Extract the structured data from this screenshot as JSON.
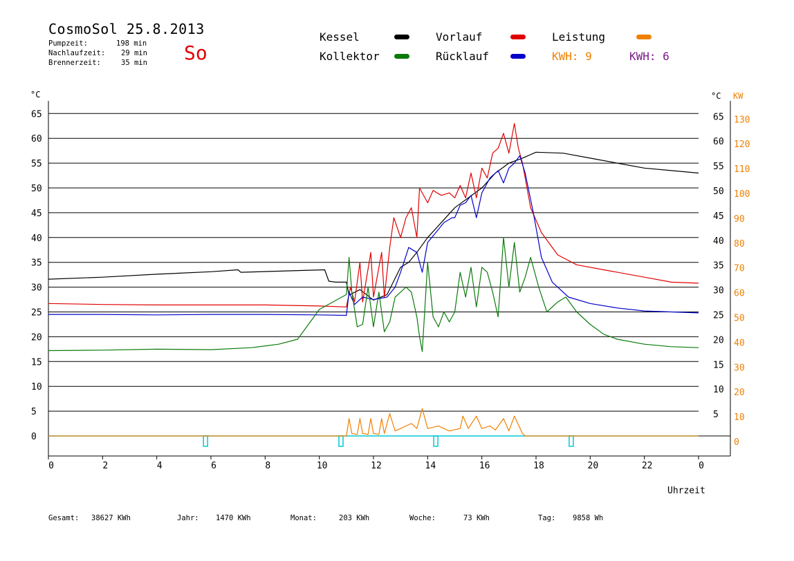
{
  "header": {
    "title": "CosmoSol 25.8.2013",
    "day": "So",
    "stats": [
      {
        "label": "Pumpzeit:",
        "value": "198 min"
      },
      {
        "label": "Nachlaufzeit:",
        "value": "29 min"
      },
      {
        "label": "Brennerzeit:",
        "value": "35 min"
      }
    ]
  },
  "legend": {
    "kessel": {
      "label": "Kessel",
      "color": "#000000"
    },
    "kollektor": {
      "label": "Kollektor",
      "color": "#0a7a0a"
    },
    "vorlauf": {
      "label": "Vorlauf",
      "color": "#e00000"
    },
    "ruecklauf": {
      "label": "Rücklauf",
      "color": "#0000c8"
    },
    "leistung": {
      "label": "Leistung",
      "color": "#f08000"
    },
    "kwh1": {
      "label": "KWH: 9",
      "color": "#f08000"
    },
    "kwh2": {
      "label": "KWH: 6",
      "color": "#7a1a8a"
    }
  },
  "footer": [
    {
      "label": "Gesamt:",
      "value": "38627 KWh"
    },
    {
      "label": "Jahr:",
      "value": "1470 KWh"
    },
    {
      "label": "Monat:",
      "value": "203 KWh"
    },
    {
      "label": "Woche:",
      "value": "73 KWh"
    },
    {
      "label": "Tag:",
      "value": "9858 Wh"
    }
  ],
  "chart_data": {
    "type": "line",
    "xlabel": "Uhrzeit",
    "ylabel_left": "°C",
    "ylabel_right_1": "°C",
    "ylabel_right_2": "KW",
    "xlim": [
      0,
      24
    ],
    "ylim": [
      -4,
      70
    ],
    "x_ticks": [
      "0",
      "2",
      "4",
      "6",
      "8",
      "10",
      "12",
      "14",
      "16",
      "18",
      "20",
      "22",
      "0"
    ],
    "y_ticks_left": [
      0,
      5,
      10,
      15,
      20,
      25,
      30,
      35,
      40,
      45,
      50,
      55,
      60,
      65
    ],
    "y_ticks_right": [
      5,
      10,
      15,
      20,
      25,
      30,
      35,
      40,
      45,
      50,
      55,
      60,
      65
    ],
    "y_ticks_kw": [
      0,
      10,
      20,
      30,
      40,
      50,
      60,
      70,
      80,
      90,
      100,
      110,
      120,
      130
    ],
    "grid": true,
    "series": [
      {
        "name": "Kessel",
        "color": "#000000",
        "points": [
          [
            0,
            31.6
          ],
          [
            2,
            32
          ],
          [
            4,
            32.6
          ],
          [
            6,
            33.1
          ],
          [
            7,
            33.5
          ],
          [
            7.1,
            33
          ],
          [
            9,
            33.3
          ],
          [
            10.2,
            33.5
          ],
          [
            10.35,
            31.2
          ],
          [
            10.6,
            31
          ],
          [
            11,
            31
          ],
          [
            11.1,
            28.4
          ],
          [
            11.5,
            29.5
          ],
          [
            12,
            27.4
          ],
          [
            12.5,
            28.5
          ],
          [
            13,
            34
          ],
          [
            13.3,
            35
          ],
          [
            13.6,
            37
          ],
          [
            14,
            40
          ],
          [
            14.5,
            43
          ],
          [
            15,
            46
          ],
          [
            15.5,
            48
          ],
          [
            16,
            50
          ],
          [
            16.5,
            53
          ],
          [
            17,
            55
          ],
          [
            17.5,
            56
          ],
          [
            18,
            57.2
          ],
          [
            19,
            57
          ],
          [
            20,
            56
          ],
          [
            21,
            55
          ],
          [
            22,
            54
          ],
          [
            23,
            53.5
          ],
          [
            24,
            53
          ]
        ]
      },
      {
        "name": "Vorlauf",
        "color": "#e00000",
        "points": [
          [
            0,
            26.7
          ],
          [
            2,
            26.5
          ],
          [
            4,
            26.4
          ],
          [
            6,
            26.4
          ],
          [
            8,
            26.4
          ],
          [
            10,
            26.2
          ],
          [
            11,
            26
          ],
          [
            11.15,
            30
          ],
          [
            11.3,
            27
          ],
          [
            11.5,
            35
          ],
          [
            11.6,
            27
          ],
          [
            11.9,
            37
          ],
          [
            12,
            28
          ],
          [
            12.3,
            37
          ],
          [
            12.4,
            28
          ],
          [
            12.6,
            38
          ],
          [
            12.75,
            44
          ],
          [
            13,
            40
          ],
          [
            13.2,
            44
          ],
          [
            13.4,
            46
          ],
          [
            13.6,
            40
          ],
          [
            13.7,
            50
          ],
          [
            14,
            47
          ],
          [
            14.2,
            49.5
          ],
          [
            14.5,
            48.5
          ],
          [
            14.8,
            49
          ],
          [
            15,
            48
          ],
          [
            15.2,
            50.5
          ],
          [
            15.4,
            48
          ],
          [
            15.6,
            53
          ],
          [
            15.8,
            48
          ],
          [
            16,
            54
          ],
          [
            16.2,
            52
          ],
          [
            16.4,
            57
          ],
          [
            16.6,
            58
          ],
          [
            16.8,
            61
          ],
          [
            17,
            57
          ],
          [
            17.2,
            63
          ],
          [
            17.35,
            58
          ],
          [
            17.5,
            55
          ],
          [
            17.8,
            46
          ],
          [
            18.2,
            41
          ],
          [
            18.8,
            36.5
          ],
          [
            19.5,
            34.5
          ],
          [
            20.5,
            33.5
          ],
          [
            22,
            32
          ],
          [
            23,
            31
          ],
          [
            24,
            30.8
          ]
        ]
      },
      {
        "name": "Rücklauf",
        "color": "#0000c8",
        "points": [
          [
            0,
            24.5
          ],
          [
            2,
            24.5
          ],
          [
            4,
            24.4
          ],
          [
            6,
            24.5
          ],
          [
            8,
            24.5
          ],
          [
            10,
            24.4
          ],
          [
            11,
            24.3
          ],
          [
            11.1,
            29
          ],
          [
            11.3,
            26.5
          ],
          [
            11.6,
            28
          ],
          [
            12,
            27.5
          ],
          [
            12.5,
            28
          ],
          [
            12.8,
            30
          ],
          [
            13,
            33
          ],
          [
            13.3,
            38
          ],
          [
            13.6,
            37
          ],
          [
            13.8,
            33
          ],
          [
            14,
            39
          ],
          [
            14.3,
            41
          ],
          [
            14.6,
            43
          ],
          [
            14.9,
            44
          ],
          [
            15,
            44
          ],
          [
            15.2,
            46.5
          ],
          [
            15.4,
            47
          ],
          [
            15.6,
            48.5
          ],
          [
            15.8,
            44
          ],
          [
            16,
            49
          ],
          [
            16.3,
            52
          ],
          [
            16.6,
            53.5
          ],
          [
            16.8,
            51
          ],
          [
            17,
            54
          ],
          [
            17.2,
            55
          ],
          [
            17.4,
            56.5
          ],
          [
            17.6,
            53
          ],
          [
            17.9,
            45
          ],
          [
            18.2,
            36
          ],
          [
            18.6,
            31
          ],
          [
            19.2,
            28
          ],
          [
            20,
            26.7
          ],
          [
            21,
            25.8
          ],
          [
            22,
            25.2
          ],
          [
            23,
            25
          ],
          [
            24,
            24.8
          ]
        ]
      },
      {
        "name": "Kollektor",
        "color": "#0a7a0a",
        "points": [
          [
            0,
            17.2
          ],
          [
            2,
            17.3
          ],
          [
            4,
            17.5
          ],
          [
            6,
            17.4
          ],
          [
            7.5,
            17.8
          ],
          [
            8.5,
            18.5
          ],
          [
            9.2,
            19.5
          ],
          [
            9.6,
            22.5
          ],
          [
            10,
            25.5
          ],
          [
            10.5,
            27
          ],
          [
            11,
            28.5
          ],
          [
            11.1,
            36
          ],
          [
            11.2,
            29
          ],
          [
            11.4,
            22
          ],
          [
            11.6,
            22.5
          ],
          [
            11.8,
            30
          ],
          [
            12,
            22
          ],
          [
            12.2,
            29
          ],
          [
            12.4,
            21
          ],
          [
            12.6,
            23
          ],
          [
            12.8,
            28
          ],
          [
            13,
            29
          ],
          [
            13.2,
            30
          ],
          [
            13.4,
            29
          ],
          [
            13.6,
            24
          ],
          [
            13.7,
            20
          ],
          [
            13.8,
            17
          ],
          [
            14,
            35
          ],
          [
            14.2,
            24
          ],
          [
            14.4,
            22
          ],
          [
            14.6,
            25
          ],
          [
            14.8,
            23
          ],
          [
            15,
            25
          ],
          [
            15.2,
            33
          ],
          [
            15.4,
            28
          ],
          [
            15.6,
            34
          ],
          [
            15.8,
            26
          ],
          [
            16,
            34
          ],
          [
            16.2,
            33
          ],
          [
            16.4,
            29
          ],
          [
            16.6,
            24
          ],
          [
            16.8,
            40
          ],
          [
            17,
            30
          ],
          [
            17.2,
            39
          ],
          [
            17.4,
            29
          ],
          [
            17.6,
            32
          ],
          [
            17.8,
            36
          ],
          [
            18.1,
            30
          ],
          [
            18.4,
            25
          ],
          [
            18.8,
            27
          ],
          [
            19.1,
            28
          ],
          [
            19.5,
            25
          ],
          [
            20,
            22.5
          ],
          [
            20.5,
            20.5
          ],
          [
            21,
            19.5
          ],
          [
            22,
            18.5
          ],
          [
            23,
            18
          ],
          [
            24,
            17.8
          ]
        ]
      },
      {
        "name": "Leistung",
        "color": "#f08000",
        "points": [
          [
            0,
            0
          ],
          [
            11,
            0
          ],
          [
            11.1,
            3.5
          ],
          [
            11.2,
            0.5
          ],
          [
            11.4,
            0.3
          ],
          [
            11.5,
            3.5
          ],
          [
            11.6,
            0.5
          ],
          [
            11.8,
            0.3
          ],
          [
            11.9,
            3.5
          ],
          [
            12,
            0.5
          ],
          [
            12.2,
            0.3
          ],
          [
            12.3,
            3.5
          ],
          [
            12.4,
            0.5
          ],
          [
            12.6,
            4.5
          ],
          [
            12.8,
            1
          ],
          [
            13,
            1.5
          ],
          [
            13.4,
            2.5
          ],
          [
            13.6,
            1.5
          ],
          [
            13.8,
            5.5
          ],
          [
            14,
            1.5
          ],
          [
            14.4,
            2
          ],
          [
            14.8,
            1
          ],
          [
            15.2,
            1.5
          ],
          [
            15.3,
            4
          ],
          [
            15.5,
            1.5
          ],
          [
            15.8,
            4
          ],
          [
            16,
            1.5
          ],
          [
            16.3,
            2
          ],
          [
            16.5,
            1.2
          ],
          [
            16.8,
            3.5
          ],
          [
            17,
            1
          ],
          [
            17.2,
            4
          ],
          [
            17.5,
            0.5
          ],
          [
            17.6,
            0
          ],
          [
            24,
            0
          ]
        ]
      }
    ],
    "marker_series": {
      "name": "Brenner",
      "color": "#00c8d8",
      "x": [
        5.8,
        10.8,
        14.3,
        19.3
      ]
    }
  }
}
